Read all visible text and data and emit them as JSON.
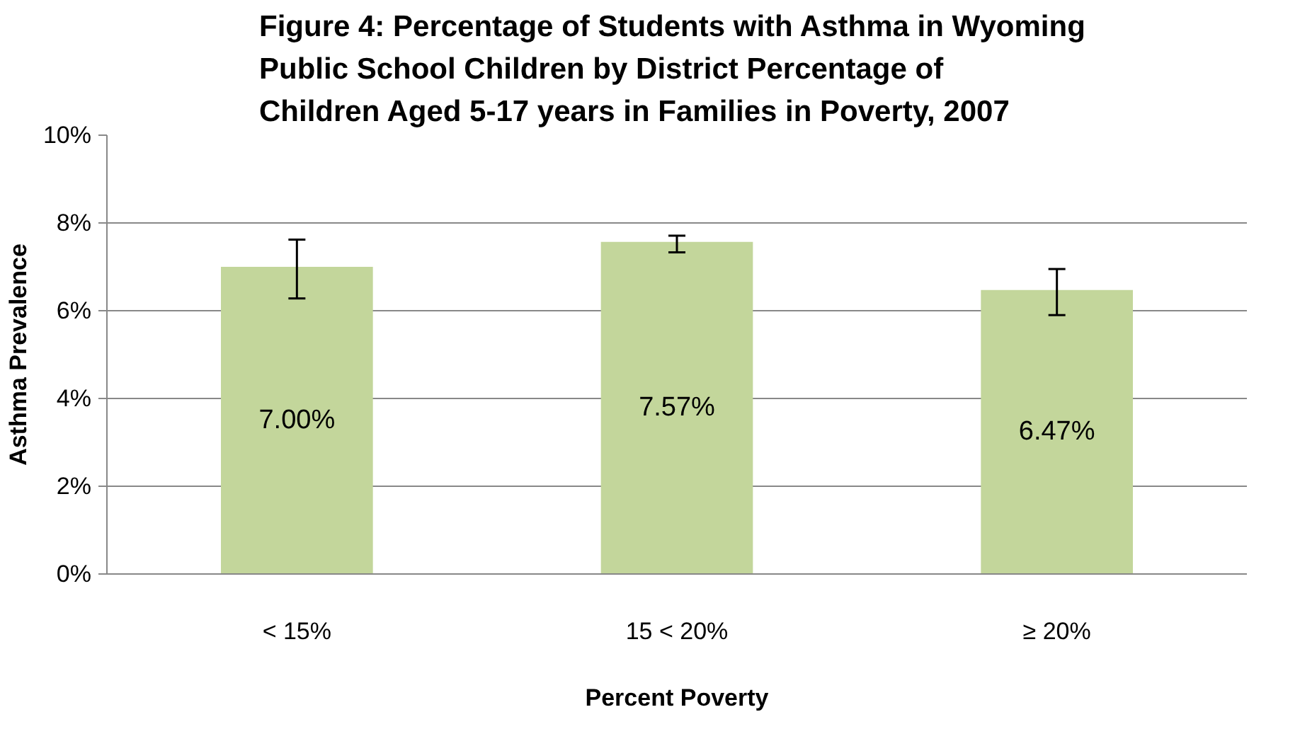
{
  "chart_data": {
    "type": "bar",
    "title": "Figure 4:  Percentage of Students with Asthma in Wyoming Public School Children by District Percentage of Children Aged 5-17 years in Families in Poverty, 2007",
    "xlabel": "Percent Poverty",
    "ylabel": "Asthma Prevalence",
    "categories": [
      "< 15%",
      "15 < 20%",
      "≥ 20%"
    ],
    "values": [
      7.0,
      7.57,
      6.47
    ],
    "errors": [
      [
        6.28,
        7.62
      ],
      [
        7.33,
        7.71
      ],
      [
        5.9,
        6.95
      ]
    ],
    "value_labels": [
      "7.00%",
      "7.57%",
      "6.47%"
    ],
    "color": "#c3d69b",
    "ylim": [
      0,
      10
    ],
    "yticks": [
      {
        "value": 0,
        "label": "0%"
      },
      {
        "value": 2,
        "label": "2%"
      },
      {
        "value": 4,
        "label": "4%"
      },
      {
        "value": 6,
        "label": "6%"
      },
      {
        "value": 8,
        "label": "8%"
      },
      {
        "value": 10,
        "label": "10%"
      }
    ],
    "grid": "y"
  }
}
